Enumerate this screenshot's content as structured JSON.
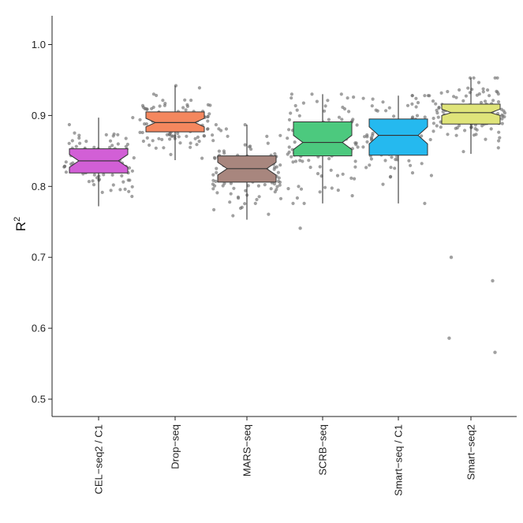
{
  "chart_data": {
    "type": "boxplot",
    "ylabel": "R",
    "ylabel_sup": "2",
    "ylim": [
      0.48,
      1.02
    ],
    "yticks": [
      "0.5",
      "0.6",
      "0.7",
      "0.8",
      "0.9",
      "1.0"
    ],
    "notched": true,
    "jittered_points": true,
    "grid": false,
    "categories": [
      "CEL−seq2 / C1",
      "Drop−seq",
      "MARS−seq",
      "SCRB−seq",
      "Smart−seq / C1",
      "Smart−seq2"
    ],
    "series": [
      {
        "category": "CEL−seq2 / C1",
        "color": "#d25fd6",
        "q1": 0.819,
        "median": 0.836,
        "q3": 0.853,
        "whisker_low": 0.772,
        "whisker_high": 0.897,
        "notch_low": 0.827,
        "notch_high": 0.845,
        "outliers": []
      },
      {
        "category": "Drop−seq",
        "color": "#f4875e",
        "q1": 0.877,
        "median": 0.89,
        "q3": 0.905,
        "whisker_low": 0.837,
        "whisker_high": 0.942,
        "notch_low": 0.884,
        "notch_high": 0.896,
        "outliers": []
      },
      {
        "category": "MARS−seq",
        "color": "#a8867e",
        "q1": 0.806,
        "median": 0.825,
        "q3": 0.843,
        "whisker_low": 0.753,
        "whisker_high": 0.887,
        "notch_low": 0.816,
        "notch_high": 0.834,
        "outliers": []
      },
      {
        "category": "SCRB−seq",
        "color": "#4cc97e",
        "q1": 0.843,
        "median": 0.862,
        "q3": 0.891,
        "whisker_low": 0.776,
        "whisker_high": 0.93,
        "notch_low": 0.852,
        "notch_high": 0.872,
        "outliers": [
          0.741
        ]
      },
      {
        "category": "Smart−seq / C1",
        "color": "#25b9ef",
        "q1": 0.844,
        "median": 0.872,
        "q3": 0.895,
        "whisker_low": 0.776,
        "whisker_high": 0.928,
        "notch_low": 0.86,
        "notch_high": 0.884,
        "outliers": []
      },
      {
        "category": "Smart−seq2",
        "color": "#dfe47a",
        "q1": 0.888,
        "median": 0.904,
        "q3": 0.916,
        "whisker_low": 0.846,
        "whisker_high": 0.953,
        "notch_low": 0.9,
        "notch_high": 0.909,
        "outliers": [
          0.7,
          0.667,
          0.586,
          0.566
        ]
      }
    ]
  }
}
